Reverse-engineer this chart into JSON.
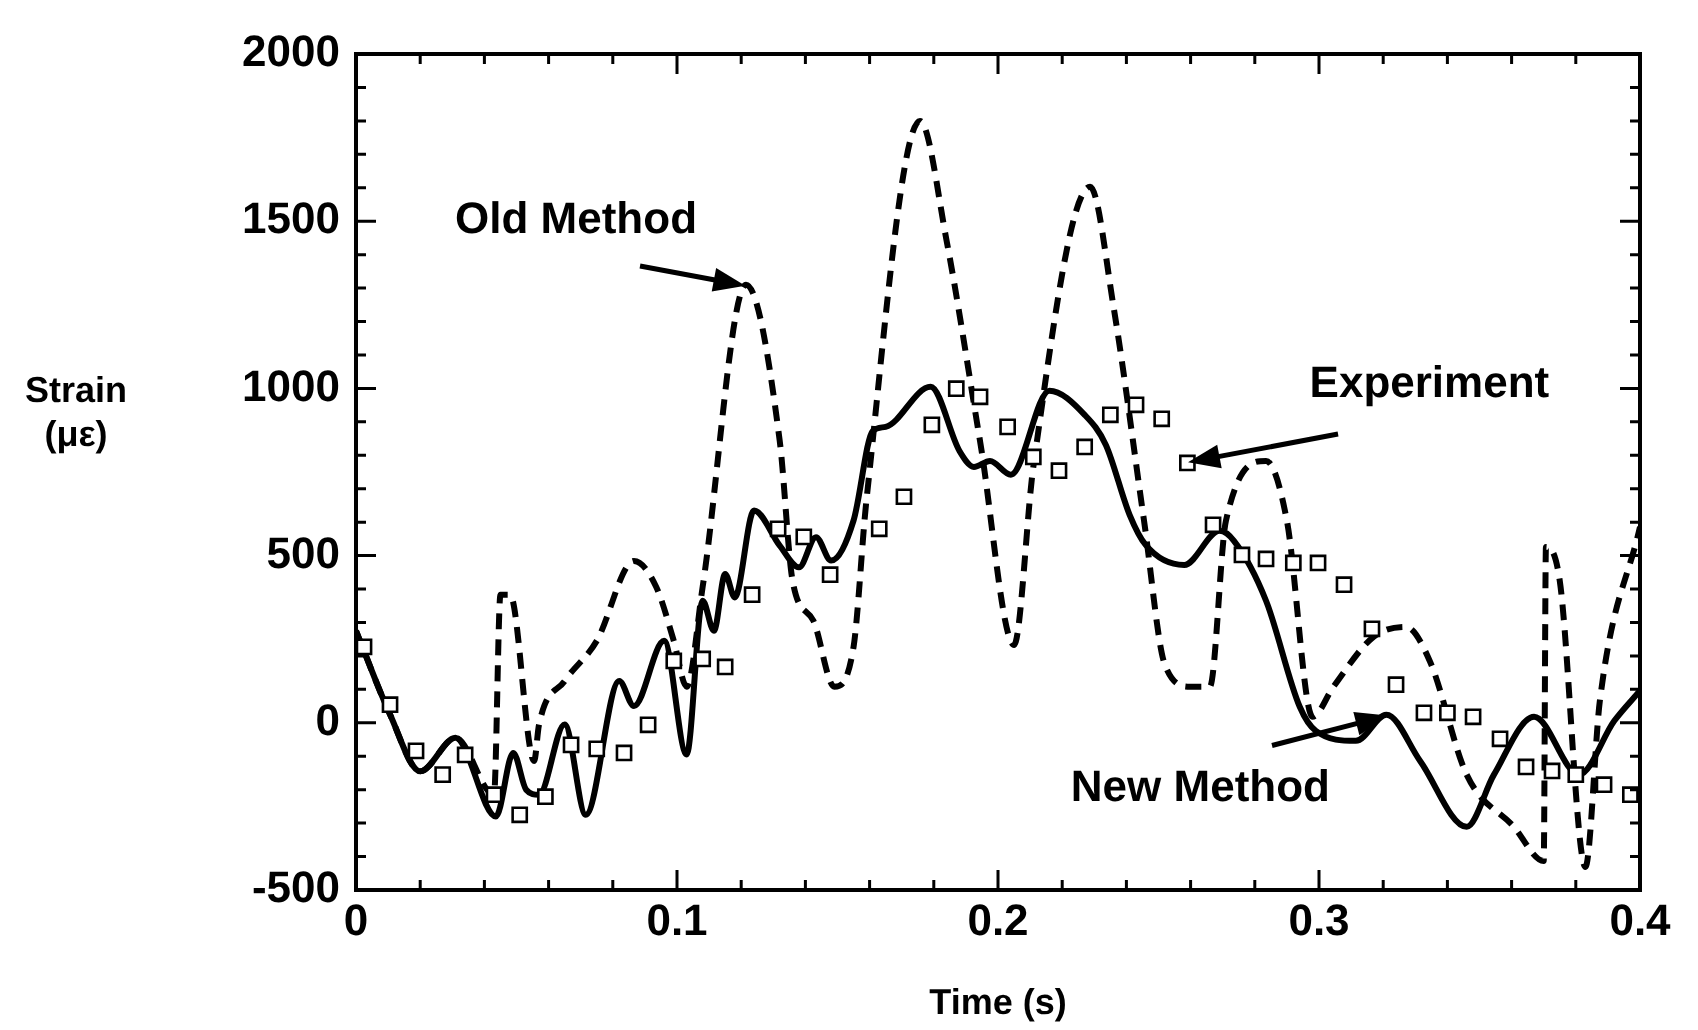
{
  "chart_data": {
    "type": "line",
    "xlabel": "Time (s)",
    "ylabel": "Strain (με)",
    "xlim": [
      0,
      0.4
    ],
    "ylim": [
      -500,
      2000
    ],
    "xticks": [
      0,
      {
        "value": 0.02,
        "label": null
      },
      {
        "value": 0.04,
        "label": null
      },
      {
        "value": 0.06,
        "label": null
      },
      {
        "value": 0.08,
        "label": null
      },
      0.1,
      {
        "value": 0.12,
        "label": null
      },
      {
        "value": 0.14,
        "label": null
      },
      {
        "value": 0.16,
        "label": null
      },
      {
        "value": 0.18,
        "label": null
      },
      0.2,
      {
        "value": 0.22,
        "label": null
      },
      {
        "value": 0.24,
        "label": null
      },
      {
        "value": 0.26,
        "label": null
      },
      {
        "value": 0.28,
        "label": null
      },
      0.3,
      {
        "value": 0.32,
        "label": null
      },
      {
        "value": 0.34,
        "label": null
      },
      {
        "value": 0.36,
        "label": null
      },
      {
        "value": 0.38,
        "label": null
      },
      0.4
    ],
    "yticks": [
      -500,
      {
        "value": -400,
        "label": null
      },
      {
        "value": -300,
        "label": null
      },
      {
        "value": -200,
        "label": null
      },
      {
        "value": -100,
        "label": null
      },
      0,
      {
        "value": 100,
        "label": null
      },
      {
        "value": 200,
        "label": null
      },
      {
        "value": 300,
        "label": null
      },
      {
        "value": 400,
        "label": null
      },
      500,
      {
        "value": 600,
        "label": null
      },
      {
        "value": 700,
        "label": null
      },
      {
        "value": 800,
        "label": null
      },
      {
        "value": 900,
        "label": null
      },
      1000,
      {
        "value": 1100,
        "label": null
      },
      {
        "value": 1200,
        "label": null
      },
      {
        "value": 1300,
        "label": null
      },
      {
        "value": 1400,
        "label": null
      },
      1500,
      {
        "value": 1600,
        "label": null
      },
      {
        "value": 1700,
        "label": null
      },
      {
        "value": 1800,
        "label": null
      },
      {
        "value": 1900,
        "label": null
      },
      2000
    ],
    "series": [
      {
        "name": "Old Method",
        "color": "#000000",
        "line_style": "dashed",
        "marker": "none",
        "x": [
          0,
          0.0106,
          0.02,
          0.031,
          0.043,
          0.045,
          0.048,
          0.0555,
          0.057,
          0.065,
          0.075,
          0.0866,
          0.0935,
          0.099,
          0.103,
          0.108,
          0.1215,
          0.132,
          0.136,
          0.1425,
          0.149,
          0.155,
          0.159,
          0.1757,
          0.184,
          0.1944,
          0.205,
          0.211,
          0.2287,
          0.236,
          0.2455,
          0.252,
          0.26,
          0.266,
          0.271,
          0.2835,
          0.29,
          0.298,
          0.3045,
          0.317,
          0.327,
          0.3345,
          0.346,
          0.3607,
          0.37,
          0.3707,
          0.375,
          0.383,
          0.3875,
          0.4
        ],
        "values": [
          275,
          25,
          -145,
          -45,
          -215,
          383,
          383,
          -114,
          -6,
          125,
          245,
          484,
          407,
          245,
          108,
          407,
          1310,
          843,
          425,
          305,
          108,
          227,
          664,
          1800,
          1441,
          843,
          233,
          765,
          1603,
          1244,
          604,
          173,
          108,
          108,
          604,
          783,
          604,
          18,
          108,
          257,
          287,
          185,
          -155,
          -311,
          -413,
          526,
          425,
          -431,
          66,
          586
        ]
      },
      {
        "name": "New Method",
        "color": "#000000",
        "line_style": "solid",
        "marker": "none",
        "x": [
          0,
          0.0106,
          0.02,
          0.031,
          0.0436,
          0.049,
          0.053,
          0.057,
          0.065,
          0.0716,
          0.082,
          0.0866,
          0.096,
          0.103,
          0.108,
          0.1115,
          0.115,
          0.118,
          0.124,
          0.132,
          0.138,
          0.1433,
          0.148,
          0.155,
          0.161,
          0.165,
          0.179,
          0.188,
          0.1925,
          0.1975,
          0.204,
          0.216,
          0.227,
          0.2336,
          0.241,
          0.246,
          0.258,
          0.269,
          0.2735,
          0.2835,
          0.294,
          0.299,
          0.3115,
          0.321,
          0.3315,
          0.346,
          0.3545,
          0.367,
          0.381,
          0.392,
          0.4
        ],
        "values": [
          275,
          25,
          -145,
          -45,
          -280,
          -90,
          -200,
          -215,
          -5,
          -275,
          125,
          50,
          245,
          -95,
          365,
          275,
          445,
          375,
          635,
          530,
          465,
          555,
          485,
          605,
          873,
          885,
          1005,
          813,
          765,
          783,
          742,
          993,
          921,
          831,
          622,
          532,
          472,
          574,
          544,
          365,
          48,
          -24,
          -54,
          24,
          -114,
          -311,
          -155,
          18,
          -155,
          6,
          96
        ]
      },
      {
        "name": "Experiment",
        "type": "scatter",
        "color": "#000000",
        "marker": "square",
        "x": [
          0.0025,
          0.0106,
          0.0187,
          0.027,
          0.034,
          0.043,
          0.051,
          0.059,
          0.067,
          0.075,
          0.0835,
          0.091,
          0.099,
          0.108,
          0.115,
          0.1234,
          0.1315,
          0.1395,
          0.1477,
          0.163,
          0.1707,
          0.1794,
          0.187,
          0.1944,
          0.203,
          0.211,
          0.219,
          0.227,
          0.235,
          0.243,
          0.251,
          0.259,
          0.267,
          0.276,
          0.2835,
          0.292,
          0.2997,
          0.3078,
          0.3165,
          0.324,
          0.3327,
          0.34,
          0.348,
          0.3564,
          0.3645,
          0.3726,
          0.38,
          0.3888,
          0.397
        ],
        "values": [
          227,
          54,
          -84,
          -155,
          -96,
          -215,
          -275,
          -221,
          -66,
          -78,
          -90,
          -6,
          185,
          191,
          167,
          383,
          580,
          556,
          443,
          580,
          676,
          891,
          999,
          975,
          885,
          795,
          754,
          825,
          921,
          951,
          909,
          777,
          592,
          502,
          490,
          478,
          478,
          413,
          281,
          114,
          30,
          30,
          18,
          -48,
          -132,
          -144,
          -155,
          -185,
          -215
        ]
      }
    ]
  }
}
